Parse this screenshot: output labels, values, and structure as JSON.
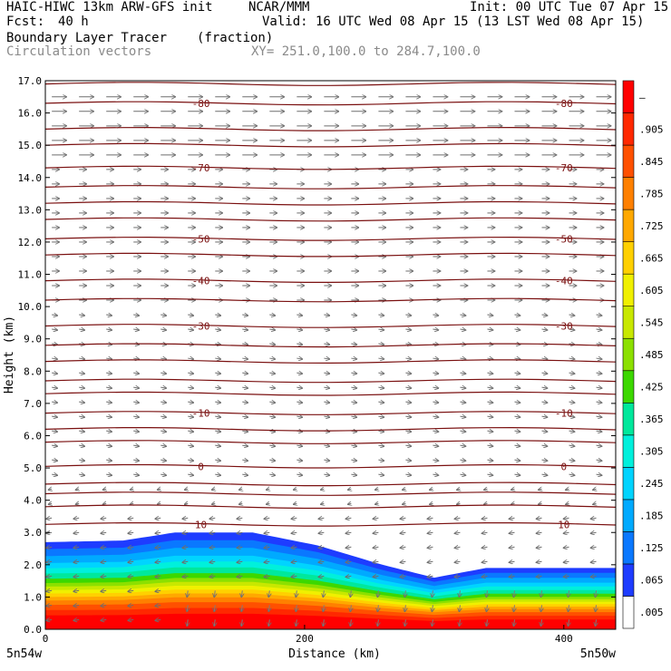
{
  "header": {
    "model": "HAIC-HIWC 13km ARW-GFS init",
    "org": "NCAR/MMM",
    "init": "Init: 00 UTC Tue 07 Apr 15",
    "fcst_label": "Fcst:",
    "fcst_value": "40 h",
    "valid": "Valid: 16 UTC Wed 08 Apr 15 (13 LST Wed 08 Apr 15)",
    "field1": "Boundary Layer Tracer",
    "field1_unit": "(fraction)",
    "field2": "Circulation vectors",
    "xsect": "XY= 251.0,100.0 to 284.7,100.0"
  },
  "chart_data": {
    "type": "heatmap",
    "xlabel": "Distance (km)",
    "ylabel": "Height (km)",
    "xlim": [
      0,
      440
    ],
    "ylim": [
      0,
      17
    ],
    "x_ticks": [
      "0",
      "200",
      "400"
    ],
    "x_tick_values": [
      0,
      200,
      400
    ],
    "endpoint_left": "5n54w",
    "endpoint_right": "5n50w",
    "y_ticks": [
      "0.0",
      "1.0",
      "2.0",
      "3.0",
      "4.0",
      "5.0",
      "6.0",
      "7.0",
      "8.0",
      "9.0",
      "10.0",
      "11.0",
      "12.0",
      "13.0",
      "14.0",
      "15.0",
      "16.0",
      "17.0"
    ],
    "y_tick_values": [
      0,
      1,
      2,
      3,
      4,
      5,
      6,
      7,
      8,
      9,
      10,
      11,
      12,
      13,
      14,
      15,
      16,
      17
    ],
    "colorbar": {
      "labels": [
        ".005",
        ".065",
        ".125",
        ".185",
        ".245",
        ".305",
        ".365",
        ".425",
        ".485",
        ".545",
        ".605",
        ".665",
        ".725",
        ".785",
        ".845",
        ".905",
        "–"
      ],
      "colors": [
        "#ffffff",
        "#1e3cff",
        "#0a78ff",
        "#00aaff",
        "#00d4ff",
        "#00f0dc",
        "#00e89c",
        "#3cd800",
        "#8ce000",
        "#c8e800",
        "#f0f000",
        "#ffd000",
        "#ffa800",
        "#ff8000",
        "#ff5000",
        "#ff2800",
        "#ff0000"
      ]
    },
    "temperature_contours": [
      {
        "label": "-80",
        "height_km": 16.3
      },
      {
        "label": "-70",
        "height_km": 14.3
      },
      {
        "label": "-50",
        "height_km": 12.1
      },
      {
        "label": "-40",
        "height_km": 10.8
      },
      {
        "label": "-30",
        "height_km": 9.4
      },
      {
        "label": "-10",
        "height_km": 6.7
      },
      {
        "label": "0",
        "height_km": 5.05
      },
      {
        "label": "10",
        "height_km": 3.25
      }
    ],
    "extra_isotherm_heights_km": [
      16.9,
      15.5,
      15.0,
      13.7,
      13.2,
      12.7,
      11.6,
      10.2,
      8.8,
      8.3,
      7.7,
      7.3,
      6.2,
      5.8,
      4.5,
      4.2,
      3.8
    ],
    "pbl_tracer_top_km": [
      {
        "x": 0,
        "top": 2.7
      },
      {
        "x": 60,
        "top": 2.75
      },
      {
        "x": 100,
        "top": 3.0
      },
      {
        "x": 160,
        "top": 3.0
      },
      {
        "x": 210,
        "top": 2.6
      },
      {
        "x": 260,
        "top": 2.0
      },
      {
        "x": 300,
        "top": 1.6
      },
      {
        "x": 340,
        "top": 1.9
      },
      {
        "x": 400,
        "top": 1.9
      },
      {
        "x": 440,
        "top": 1.9
      }
    ]
  }
}
